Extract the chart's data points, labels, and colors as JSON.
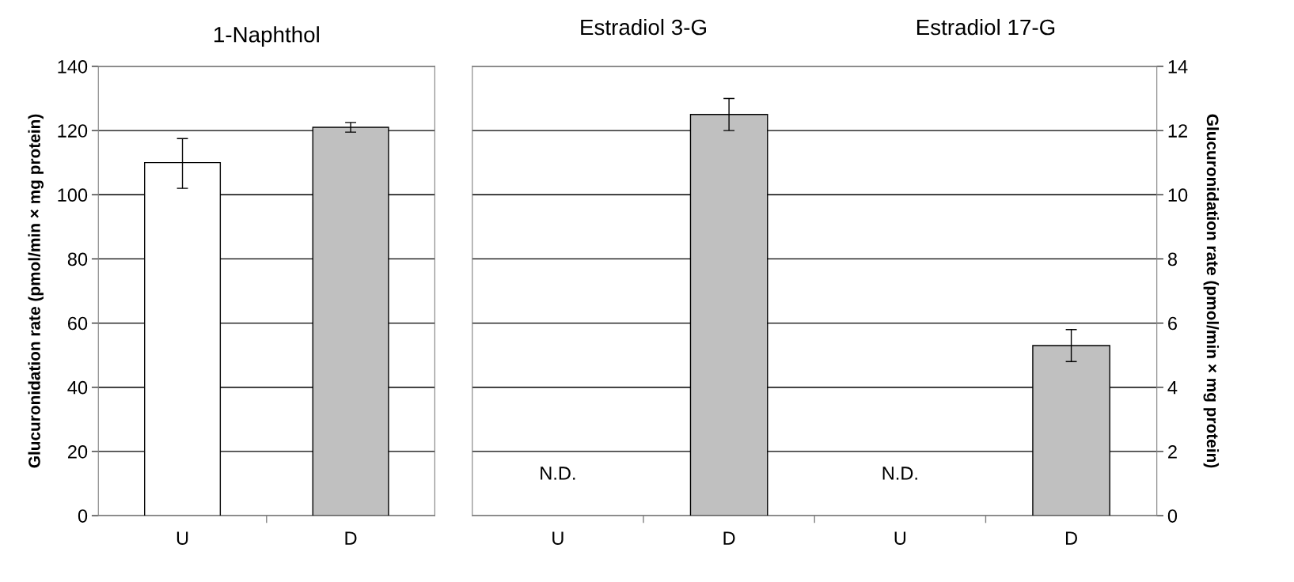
{
  "chart_data": [
    {
      "type": "bar",
      "title": "1-Naphthol",
      "ylabel": "Glucuronidation rate (pmol/min × mg protein)",
      "categories": [
        "U",
        "D"
      ],
      "values": [
        110,
        121
      ],
      "errors": [
        [
          102,
          117.5
        ],
        [
          119.5,
          122.5
        ]
      ],
      "colors": [
        "#ffffff",
        "#c0c0c0"
      ],
      "ylim": [
        0,
        140
      ],
      "yticks": [
        0,
        20,
        40,
        60,
        80,
        100,
        120,
        140
      ],
      "grid": "y"
    },
    {
      "type": "bar",
      "categories": [
        "U",
        "D",
        "U",
        "D"
      ],
      "series": [
        {
          "axis": "y2",
          "values": [
            null,
            12.5,
            null,
            5.3
          ],
          "errors": [
            null,
            [
              12.0,
              13.0
            ],
            null,
            [
              4.8,
              5.8
            ]
          ],
          "colors": [
            "#ffffff",
            "#c0c0c0",
            "#ffffff",
            "#c0c0c0"
          ]
        }
      ],
      "y2label": "Glucuronidation rate (pmol/min × mg protein)",
      "y2lim": [
        0,
        14
      ],
      "y2ticks": [
        0,
        2,
        4,
        6,
        8,
        10,
        12,
        14
      ],
      "grid": "y",
      "annotations": [
        "Estradiol 3-G",
        "Estradiol 17-G",
        "N.D.",
        "N.D."
      ]
    }
  ]
}
